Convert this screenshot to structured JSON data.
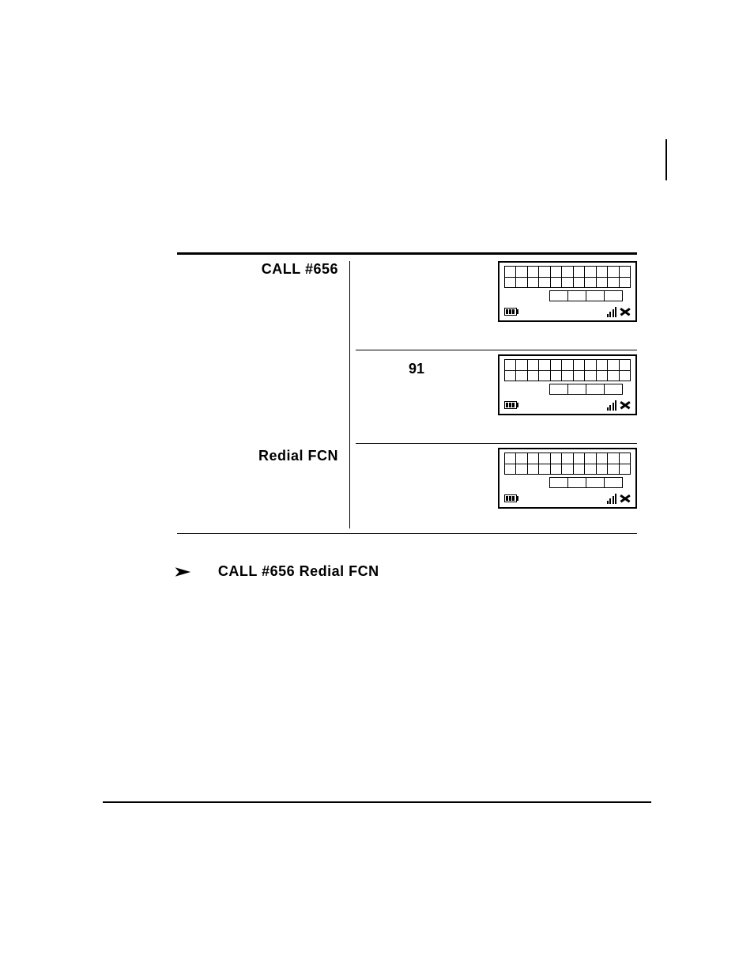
{
  "row1": {
    "left": "CALL   #656",
    "mid": ""
  },
  "row2": {
    "left": "",
    "mid": "91"
  },
  "row3": {
    "left": "Redial  FCN",
    "mid": ""
  },
  "bottom_text": "CALL  #656   Redial  FCN",
  "display": {
    "top_cols": 11,
    "top_rows": 2,
    "bottom_cols": 4,
    "border_color": "#000000",
    "background": "#ffffff"
  },
  "colors": {
    "text": "#000000",
    "background": "#ffffff",
    "rule": "#000000"
  },
  "signal_heights": [
    4,
    7,
    10,
    13
  ]
}
